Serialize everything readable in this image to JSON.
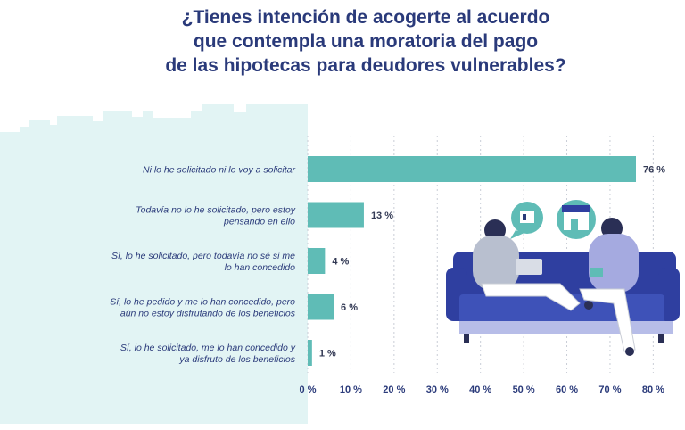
{
  "title_lines": [
    "¿Tienes intención de acogerte al acuerdo",
    "que contempla una moratoria del pago",
    "de las hipotecas para deudores vulnerables?"
  ],
  "colors": {
    "bar": "#5fbcb6",
    "panel": "#e2f4f4",
    "title": "#2a3a7a",
    "label": "#2a3a7a",
    "grid": "#c9cdd6",
    "sofa": "#2f3fa0"
  },
  "illustration": {
    "icons": [
      "chat-bubble-icon",
      "shop-icon"
    ]
  },
  "chart_data": {
    "type": "bar",
    "orientation": "horizontal",
    "categories": [
      [
        "Ni lo he solicitado ni lo voy a solicitar"
      ],
      [
        "Todavía no lo he solicitado, pero estoy",
        "pensando en ello"
      ],
      [
        "Sí, lo he solicitado, pero todavía no sé si me",
        "lo han concedido"
      ],
      [
        "Sí, lo he pedido y me lo han concedido, pero",
        "aún no estoy disfrutando de los beneficios"
      ],
      [
        "Sí, lo he solicitado, me lo han concedido y",
        "ya disfruto de los beneficios"
      ]
    ],
    "values": [
      76,
      13,
      4,
      6,
      1
    ],
    "value_labels": [
      "76 %",
      "13 %",
      "4 %",
      "6 %",
      "1 %"
    ],
    "xticks": [
      0,
      10,
      20,
      30,
      40,
      50,
      60,
      70,
      80
    ],
    "xtick_labels": [
      "0 %",
      "10 %",
      "20 %",
      "30 %",
      "40 %",
      "50 %",
      "60 %",
      "70 %",
      "80 %"
    ],
    "xlim": [
      0,
      80
    ],
    "grid": true
  }
}
